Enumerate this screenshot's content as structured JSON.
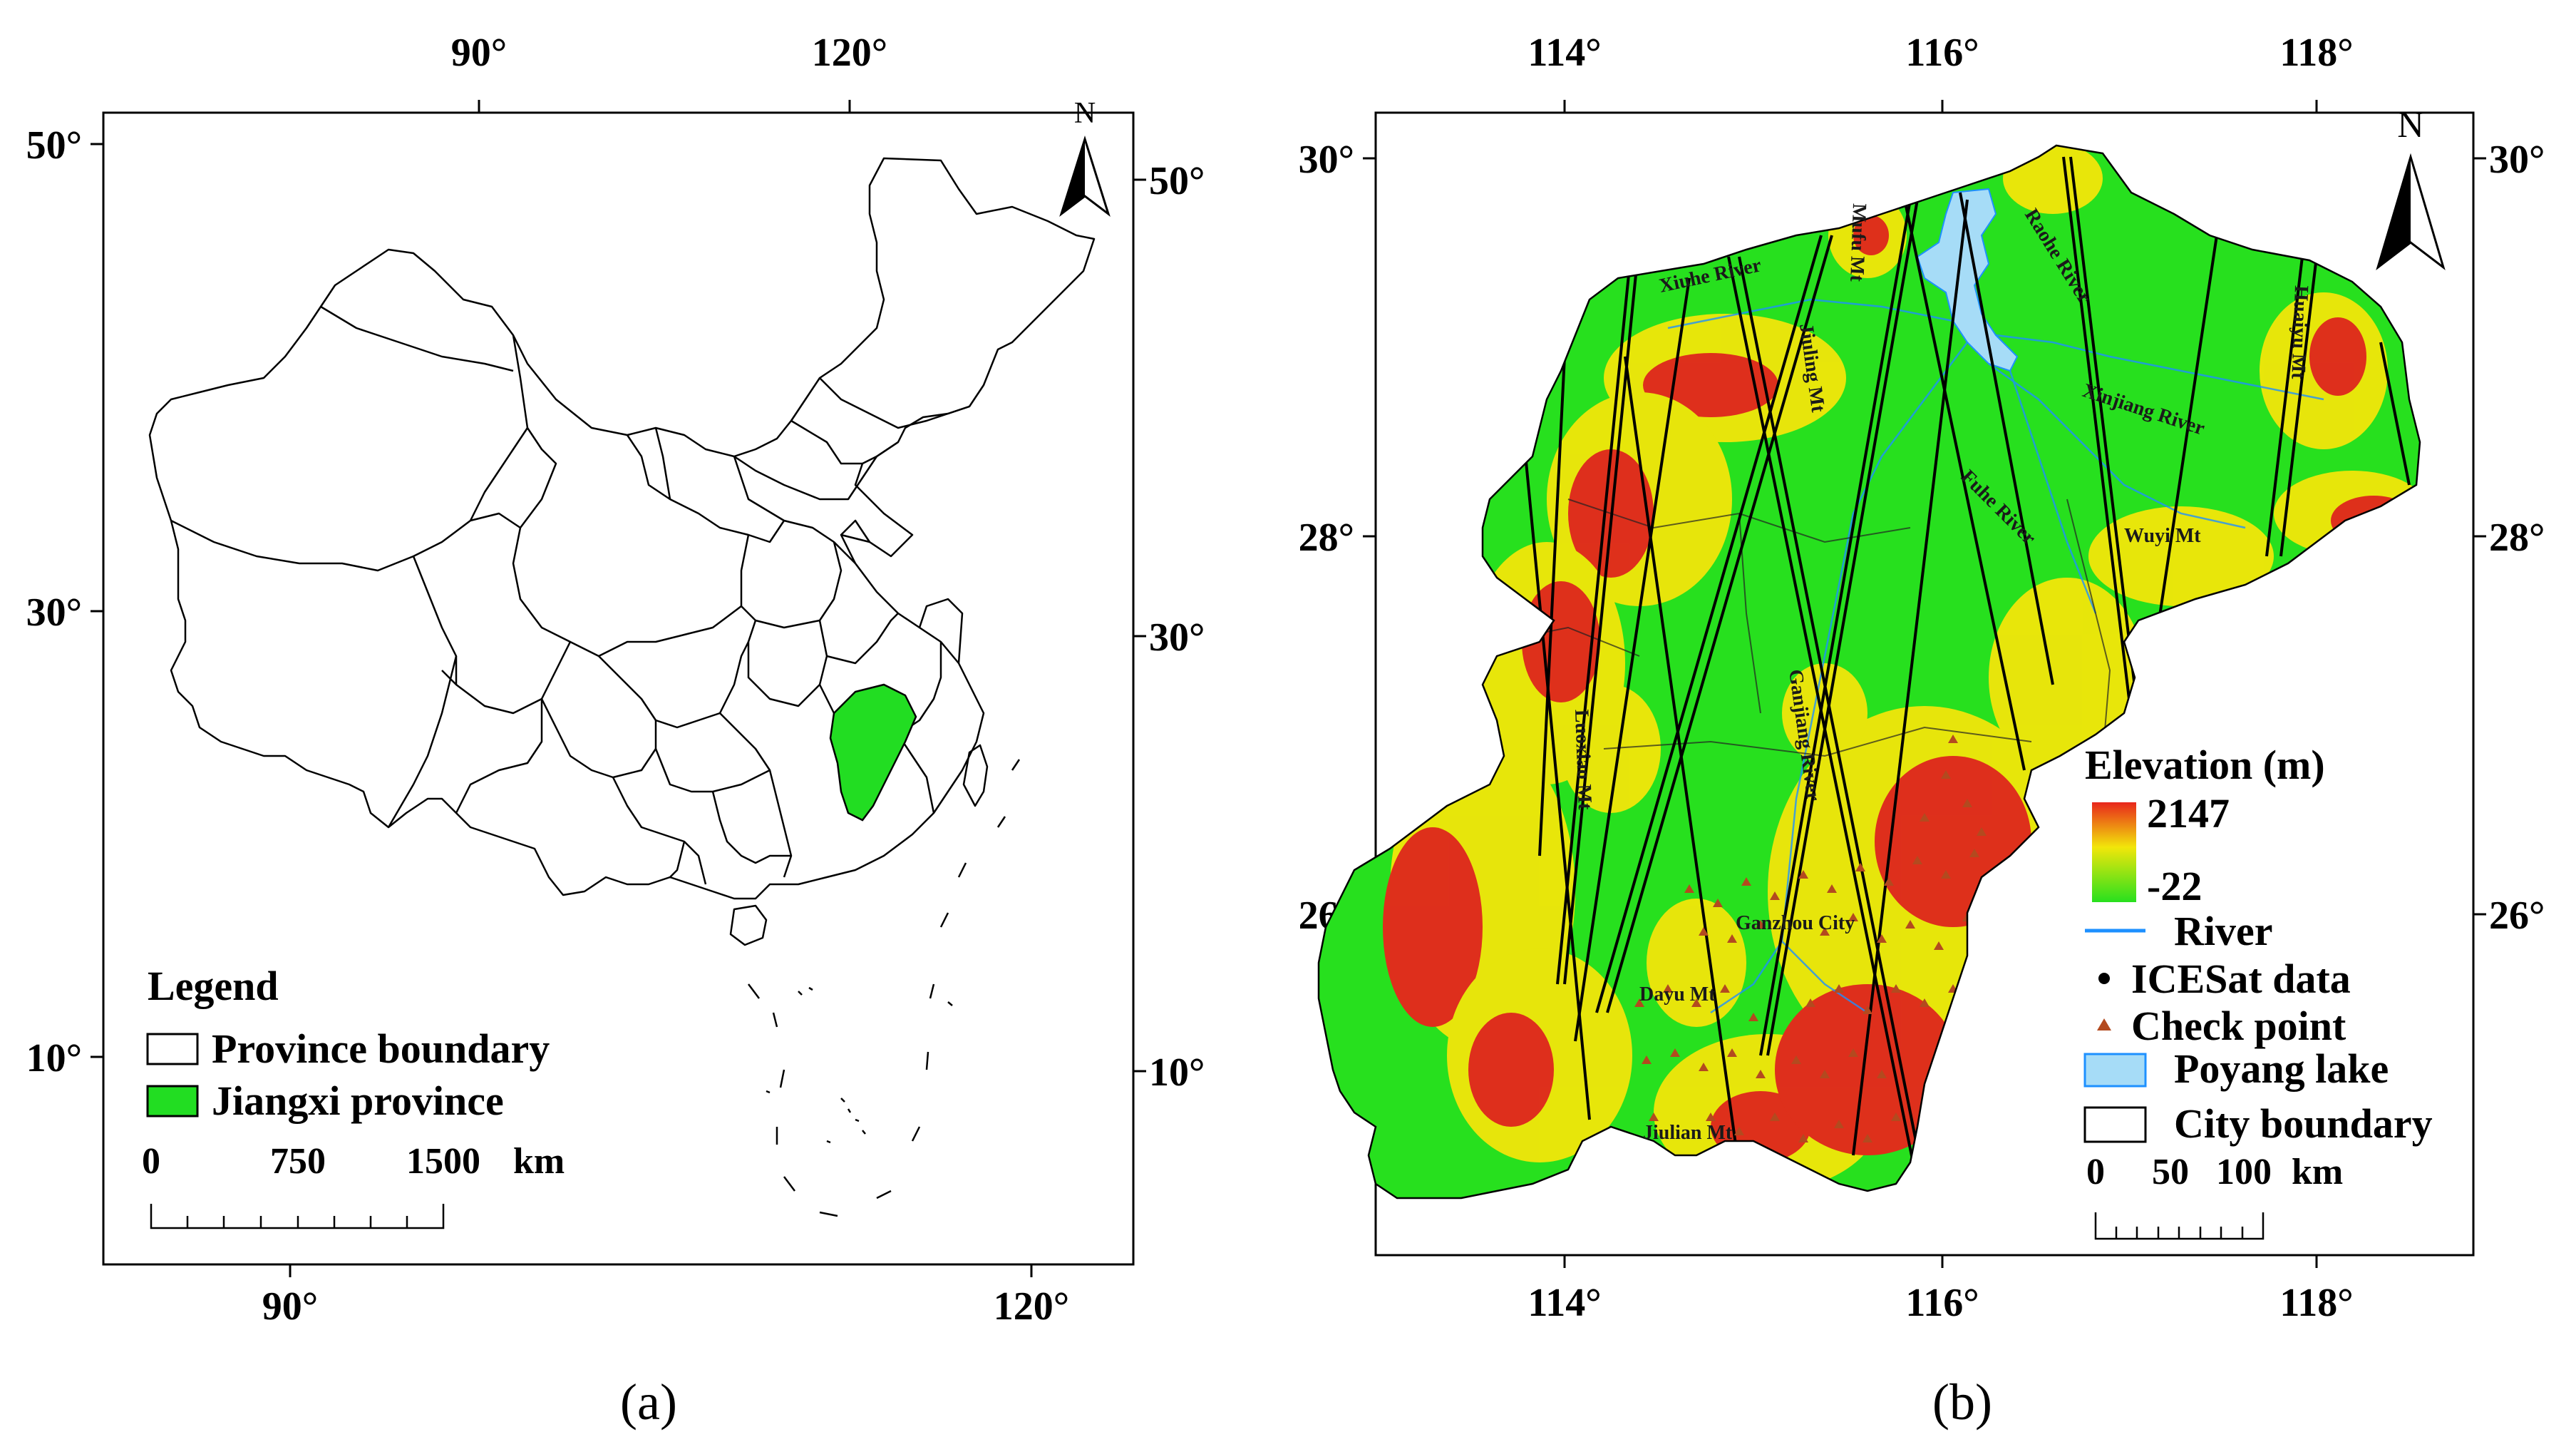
{
  "panel_a": {
    "caption": "(a)",
    "ticks_top": [
      "90°",
      "120°"
    ],
    "ticks_bottom": [
      "90°",
      "120°"
    ],
    "ticks_left": [
      "50°",
      "30°",
      "10°"
    ],
    "ticks_right": [
      "50°",
      "30°",
      "10°"
    ],
    "north_label": "N",
    "legend": {
      "title": "Legend",
      "items": [
        {
          "label": "Province boundary",
          "fill": "#ffffff"
        },
        {
          "label": "Jiangxi province",
          "fill": "#22dd22"
        }
      ]
    },
    "scale_labels": [
      "0",
      "750",
      "1500",
      "km"
    ]
  },
  "panel_b": {
    "caption": "(b)",
    "ticks_top": [
      "114°",
      "116°",
      "118°"
    ],
    "ticks_bottom": [
      "114°",
      "116°",
      "118°"
    ],
    "ticks_left": [
      "30°",
      "28°",
      "26°"
    ],
    "ticks_right": [
      "30°",
      "28°",
      "26°"
    ],
    "north_label": "N",
    "legend": {
      "title": "Elevation (m)",
      "max": "2147",
      "min": "-22",
      "items": [
        {
          "label": "River",
          "color": "#1e90ff"
        },
        {
          "label": "ICESat data",
          "color": "#000000"
        },
        {
          "label": "Check point",
          "color": "#b34a1f"
        },
        {
          "label": "Poyang lake",
          "color": "#a6dcf7"
        },
        {
          "label": "City boundary",
          "color": "#000000"
        }
      ]
    },
    "scale_labels": [
      "0",
      "50",
      "100",
      "km"
    ],
    "places": {
      "xiuhe_river": "Xiuhe River",
      "jiuling_mt": "Jiuling Mt",
      "mufu_mt": "Mufu Mt",
      "raohe_river": "Raohe River",
      "huaiyu_mt": "Huaiyu Mt",
      "xinjiang_river": "Xinjiang River",
      "fuhe_river": "Fuhe River",
      "wuyi_mt": "Wuyi Mt",
      "luoxiao_mt": "Luoxiao Mt",
      "ganjiang_river": "Ganjiang River",
      "ganzhou_city": "Ganzhou City",
      "dayu_mt": "Dayu Mt",
      "jiulian_mt": "Jiulian Mt"
    },
    "colors": {
      "high": "#e8261c",
      "mid": "#f2e60a",
      "low": "#27e01e"
    }
  }
}
